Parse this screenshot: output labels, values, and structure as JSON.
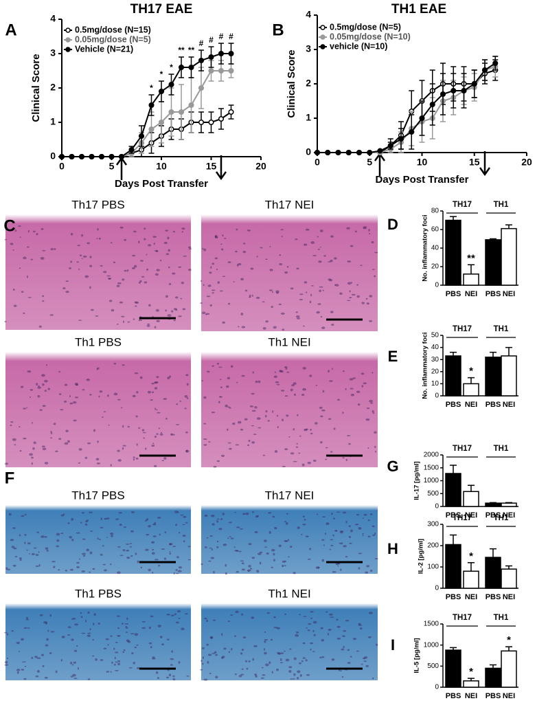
{
  "chart_data": [
    {
      "type": "line",
      "panel": "A",
      "title": "TH17 EAE",
      "x_label": "Days Post Transfer",
      "y_label": "Clinical Score",
      "legend": "upper left",
      "x": [
        0,
        1,
        2,
        3,
        4,
        5,
        6,
        7,
        8,
        9,
        10,
        11,
        12,
        13,
        14,
        15,
        16,
        17
      ],
      "xlim": [
        0,
        20
      ],
      "xticks": [
        0,
        5,
        10,
        15,
        20
      ],
      "ylim": [
        0,
        4
      ],
      "yticks": [
        0,
        1,
        2,
        3,
        4
      ],
      "series": [
        {
          "name": "0.5mg/dose (N=15)",
          "color": "#000000",
          "marker_fill": "#ffffff",
          "values": [
            0,
            0,
            0,
            0,
            0,
            0,
            0,
            0.1,
            0.2,
            0.4,
            0.6,
            0.8,
            0.8,
            1.0,
            1.0,
            1.0,
            1.1,
            1.3
          ],
          "errors": [
            0,
            0,
            0,
            0,
            0,
            0,
            0,
            0.1,
            0.2,
            0.3,
            0.3,
            0.3,
            0.3,
            0.3,
            0.3,
            0.3,
            0.3,
            0.2
          ]
        },
        {
          "name": "0.05mg/dose (N=5)",
          "color": "#999999",
          "marker_fill": "#999999",
          "values": [
            0,
            0,
            0,
            0,
            0,
            0,
            0,
            0.1,
            0.4,
            0.8,
            1.0,
            1.3,
            1.3,
            1.5,
            2.0,
            2.5,
            2.5,
            2.5
          ],
          "errors": [
            0,
            0,
            0,
            0,
            0,
            0,
            0,
            0.1,
            0.3,
            0.5,
            0.6,
            0.7,
            0.8,
            0.8,
            0.6,
            0.3,
            0.3,
            0.2
          ]
        },
        {
          "name": "Vehicle (N=21)",
          "color": "#000000",
          "marker_fill": "#000000",
          "values": [
            0,
            0,
            0,
            0,
            0,
            0,
            0,
            0.2,
            0.6,
            1.5,
            1.9,
            2.1,
            2.6,
            2.6,
            2.8,
            2.9,
            3.0,
            3.0
          ],
          "errors": [
            0,
            0,
            0,
            0,
            0,
            0,
            0,
            0.1,
            0.3,
            0.3,
            0.3,
            0.3,
            0.3,
            0.3,
            0.3,
            0.3,
            0.3,
            0.3
          ]
        }
      ],
      "significance": [
        null,
        null,
        null,
        null,
        null,
        null,
        null,
        null,
        null,
        "*",
        "*",
        "*",
        "**",
        "**",
        "#",
        "#",
        "#",
        "#"
      ]
    },
    {
      "type": "line",
      "panel": "B",
      "title": "TH1 EAE",
      "x_label": "Days Post Transfer",
      "y_label": "Clinical Score",
      "legend": "upper left",
      "x": [
        0,
        1,
        2,
        3,
        4,
        5,
        6,
        7,
        8,
        9,
        10,
        11,
        12,
        13,
        14,
        15,
        16,
        17
      ],
      "xlim": [
        0,
        20
      ],
      "xticks": [
        0,
        5,
        10,
        15,
        20
      ],
      "ylim": [
        0,
        4
      ],
      "yticks": [
        0,
        1,
        2,
        3,
        4
      ],
      "series": [
        {
          "name": "0.5mg/dose (N=5)",
          "color": "#000000",
          "marker_fill": "#ffffff",
          "values": [
            0,
            0,
            0,
            0,
            0,
            0,
            0,
            0.2,
            0.5,
            1.2,
            1.5,
            1.8,
            2.0,
            2.0,
            2.0,
            2.0,
            2.3,
            2.4
          ],
          "errors": [
            0,
            0,
            0,
            0,
            0,
            0,
            0,
            0.2,
            0.4,
            0.6,
            0.6,
            0.6,
            0.6,
            0.5,
            0.5,
            0.4,
            0.3,
            0.3
          ]
        },
        {
          "name": "0.05mg/dose (N=10)",
          "color": "#999999",
          "marker_fill": "#999999",
          "values": [
            0,
            0,
            0,
            0,
            0,
            0,
            0,
            0.1,
            0.3,
            0.7,
            0.9,
            1.0,
            1.5,
            1.6,
            1.8,
            1.9,
            2.4,
            2.5
          ],
          "errors": [
            0,
            0,
            0,
            0,
            0,
            0,
            0,
            0.1,
            0.3,
            0.5,
            0.6,
            0.6,
            0.6,
            0.5,
            0.4,
            0.4,
            0.3,
            0.3
          ]
        },
        {
          "name": "vehicle (N=10)",
          "color": "#000000",
          "marker_fill": "#000000",
          "values": [
            0,
            0,
            0,
            0,
            0,
            0,
            0.05,
            0.2,
            0.4,
            0.6,
            1.0,
            1.4,
            1.7,
            1.8,
            1.8,
            2.0,
            2.4,
            2.6
          ],
          "errors": [
            0,
            0,
            0,
            0,
            0,
            0,
            0,
            0.1,
            0.3,
            0.5,
            0.5,
            0.6,
            0.6,
            0.5,
            0.5,
            0.4,
            0.3,
            0.2
          ]
        }
      ]
    },
    {
      "type": "bar",
      "panel": "D",
      "y_label": "No. inflammatory foci",
      "groups": [
        "TH17",
        "TH1"
      ],
      "categories": [
        "PBS",
        "NEI",
        "PBS",
        "NEI"
      ],
      "colors": [
        "#000000",
        "#ffffff",
        "#000000",
        "#ffffff"
      ],
      "values": [
        70,
        12,
        49,
        61
      ],
      "errors": [
        4,
        10,
        1,
        4
      ],
      "markers": [
        null,
        "**",
        null,
        null
      ],
      "ylim": [
        0,
        80
      ],
      "yticks": [
        0,
        20,
        40,
        60,
        80
      ]
    },
    {
      "type": "bar",
      "panel": "E",
      "y_label": "No. inflammatory foci",
      "groups": [
        "TH17",
        "TH1"
      ],
      "categories": [
        "PBS",
        "NEI",
        "PBS",
        "NEI"
      ],
      "colors": [
        "#000000",
        "#ffffff",
        "#000000",
        "#ffffff"
      ],
      "values": [
        33,
        10,
        32,
        33
      ],
      "errors": [
        3,
        5,
        4,
        7
      ],
      "markers": [
        null,
        "*",
        null,
        null
      ],
      "ylim": [
        0,
        50
      ],
      "yticks": [
        0,
        10,
        20,
        30,
        40,
        50
      ]
    },
    {
      "type": "bar",
      "panel": "G",
      "y_label": "IL-17 [pg/ml]",
      "groups": [
        "TH17",
        "TH1"
      ],
      "categories": [
        "PBS",
        "NEI",
        "PBS",
        "NEI"
      ],
      "colors": [
        "#000000",
        "#ffffff",
        "#000000",
        "#ffffff"
      ],
      "values": [
        1280,
        580,
        130,
        130
      ],
      "errors": [
        320,
        240,
        20,
        20
      ],
      "ylim": [
        0,
        2000
      ],
      "yticks": [
        0,
        500,
        1000,
        1500,
        2000
      ]
    },
    {
      "type": "bar",
      "panel": "H",
      "y_label": "IL-2 [pg/ml]",
      "groups": [
        "TH17",
        "TH1"
      ],
      "categories": [
        "PBS",
        "NEI",
        "PBS",
        "NEI"
      ],
      "colors": [
        "#000000",
        "#ffffff",
        "#000000",
        "#ffffff"
      ],
      "values": [
        205,
        80,
        145,
        90
      ],
      "errors": [
        45,
        40,
        40,
        15
      ],
      "markers": [
        null,
        "*",
        null,
        null
      ],
      "ylim": [
        0,
        300
      ],
      "yticks": [
        0,
        100,
        200,
        300
      ]
    },
    {
      "type": "bar",
      "panel": "I",
      "y_label": "IL-5 [pg/ml]",
      "groups": [
        "TH17",
        "TH1"
      ],
      "categories": [
        "PBS",
        "NEI",
        "PBS",
        "NEI"
      ],
      "colors": [
        "#000000",
        "#ffffff",
        "#000000",
        "#ffffff"
      ],
      "values": [
        880,
        150,
        450,
        860
      ],
      "errors": [
        60,
        60,
        80,
        100
      ],
      "markers": [
        null,
        "*",
        null,
        "*"
      ],
      "ylim": [
        0,
        1500
      ],
      "yticks": [
        0,
        500,
        1000,
        1500
      ]
    }
  ],
  "histology": [
    {
      "panel": "C",
      "color": "#c76aa8",
      "images": [
        {
          "caption": "Th17 PBS"
        },
        {
          "caption": "Th17 NEI"
        },
        {
          "caption": "Th1 PBS"
        },
        {
          "caption": "Th1 NEI"
        }
      ]
    },
    {
      "panel": "F",
      "color": "#3f7fb8",
      "images": [
        {
          "caption": "Th17 PBS"
        },
        {
          "caption": "Th17 NEI"
        },
        {
          "caption": "Th1 PBS"
        },
        {
          "caption": "Th1 NEI"
        }
      ]
    }
  ]
}
